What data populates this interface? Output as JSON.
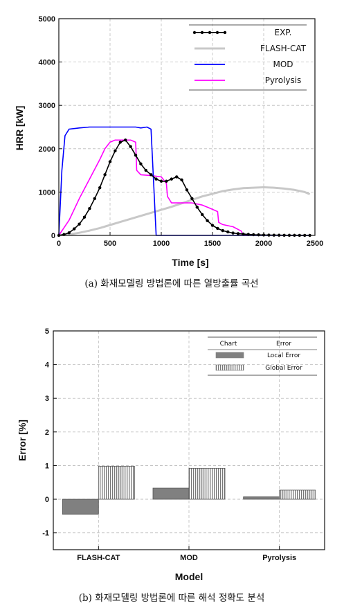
{
  "chart_data": [
    {
      "type": "line",
      "caption": "(a)  화재모델링 방법론에 따른 열방출률 곡선",
      "xlabel": "Time [s]",
      "ylabel": "HRR [kW]",
      "xlim": [
        0,
        2500
      ],
      "ylim": [
        0,
        5000
      ],
      "xticks": [
        "0",
        "500",
        "1000",
        "1500",
        "2000",
        "2500"
      ],
      "yticks": [
        "0",
        "1000",
        "2000",
        "3000",
        "4000",
        "5000"
      ],
      "grid": true,
      "legend_position": "top-right",
      "series": [
        {
          "name": "EXP.",
          "color": "#000000",
          "marker": "circle",
          "x": [
            0,
            50,
            100,
            150,
            200,
            250,
            300,
            350,
            400,
            450,
            500,
            550,
            600,
            650,
            700,
            750,
            800,
            850,
            900,
            950,
            1000,
            1050,
            1100,
            1150,
            1200,
            1250,
            1300,
            1350,
            1400,
            1450,
            1500,
            1550,
            1600,
            1650,
            1700,
            1750,
            1800,
            1850,
            1900,
            1950,
            2000,
            2050,
            2100,
            2150,
            2200,
            2250,
            2300,
            2350,
            2400,
            2450
          ],
          "y": [
            0,
            20,
            60,
            150,
            260,
            420,
            620,
            850,
            1100,
            1400,
            1700,
            1950,
            2150,
            2200,
            2050,
            1850,
            1650,
            1500,
            1400,
            1300,
            1250,
            1250,
            1300,
            1350,
            1280,
            1050,
            850,
            650,
            480,
            340,
            230,
            160,
            110,
            80,
            55,
            40,
            30,
            22,
            16,
            12,
            9,
            7,
            5,
            4,
            3,
            2,
            2,
            1,
            1,
            0
          ]
        },
        {
          "name": "FLASH-CAT",
          "color": "#c8c8c8",
          "x": [
            0,
            100,
            200,
            300,
            400,
            500,
            600,
            700,
            800,
            900,
            1000,
            1100,
            1200,
            1300,
            1400,
            1500,
            1600,
            1700,
            1800,
            1900,
            2000,
            2100,
            2200,
            2300,
            2400,
            2450
          ],
          "y": [
            0,
            20,
            60,
            110,
            170,
            240,
            310,
            380,
            450,
            520,
            590,
            660,
            740,
            820,
            900,
            960,
            1020,
            1060,
            1090,
            1100,
            1110,
            1100,
            1080,
            1050,
            1000,
            950
          ]
        },
        {
          "name": "MOD",
          "color": "#0000ff",
          "x": [
            0,
            30,
            60,
            100,
            200,
            300,
            400,
            500,
            600,
            700,
            750,
            800,
            860,
            900,
            930,
            950,
            980,
            1000,
            1050,
            2450
          ],
          "y": [
            0,
            1500,
            2300,
            2450,
            2480,
            2500,
            2500,
            2500,
            2500,
            2500,
            2500,
            2480,
            2500,
            2450,
            1000,
            0,
            0,
            0,
            0,
            0
          ]
        },
        {
          "name": "Pyrolysis",
          "color": "#ff00ff",
          "x": [
            0,
            100,
            200,
            300,
            400,
            450,
            500,
            550,
            600,
            700,
            750,
            760,
            800,
            900,
            1000,
            1050,
            1060,
            1100,
            1200,
            1300,
            1400,
            1450,
            1500,
            1550,
            1560,
            1600,
            1700,
            1780,
            1800,
            1850
          ],
          "y": [
            0,
            350,
            850,
            1300,
            1750,
            2000,
            2150,
            2200,
            2200,
            2200,
            2150,
            1500,
            1400,
            1380,
            1350,
            1200,
            900,
            750,
            750,
            750,
            700,
            650,
            600,
            550,
            300,
            250,
            200,
            100,
            0,
            0
          ]
        }
      ]
    },
    {
      "type": "bar",
      "caption": "(b)  화재모델링 방법론에 따른 해석 정확도 분석",
      "xlabel": "Model",
      "ylabel": "Error [%]",
      "ylim": [
        -1.5,
        5
      ],
      "yticks": [
        "-1",
        "0",
        "1",
        "2",
        "3",
        "4",
        "5"
      ],
      "categories": [
        "FLASH-CAT",
        "MOD",
        "Pyrolysis"
      ],
      "legend_header": [
        "Chart",
        "Error"
      ],
      "legend_position": "top-right",
      "grid": true,
      "series": [
        {
          "name": "Local Error",
          "color": "#808080",
          "pattern": "solid",
          "values": [
            -0.45,
            0.33,
            0.07
          ]
        },
        {
          "name": "Global Error",
          "color": "#9a9a9a",
          "pattern": "vertical-stripes",
          "values": [
            0.98,
            0.92,
            0.27
          ]
        }
      ]
    }
  ]
}
